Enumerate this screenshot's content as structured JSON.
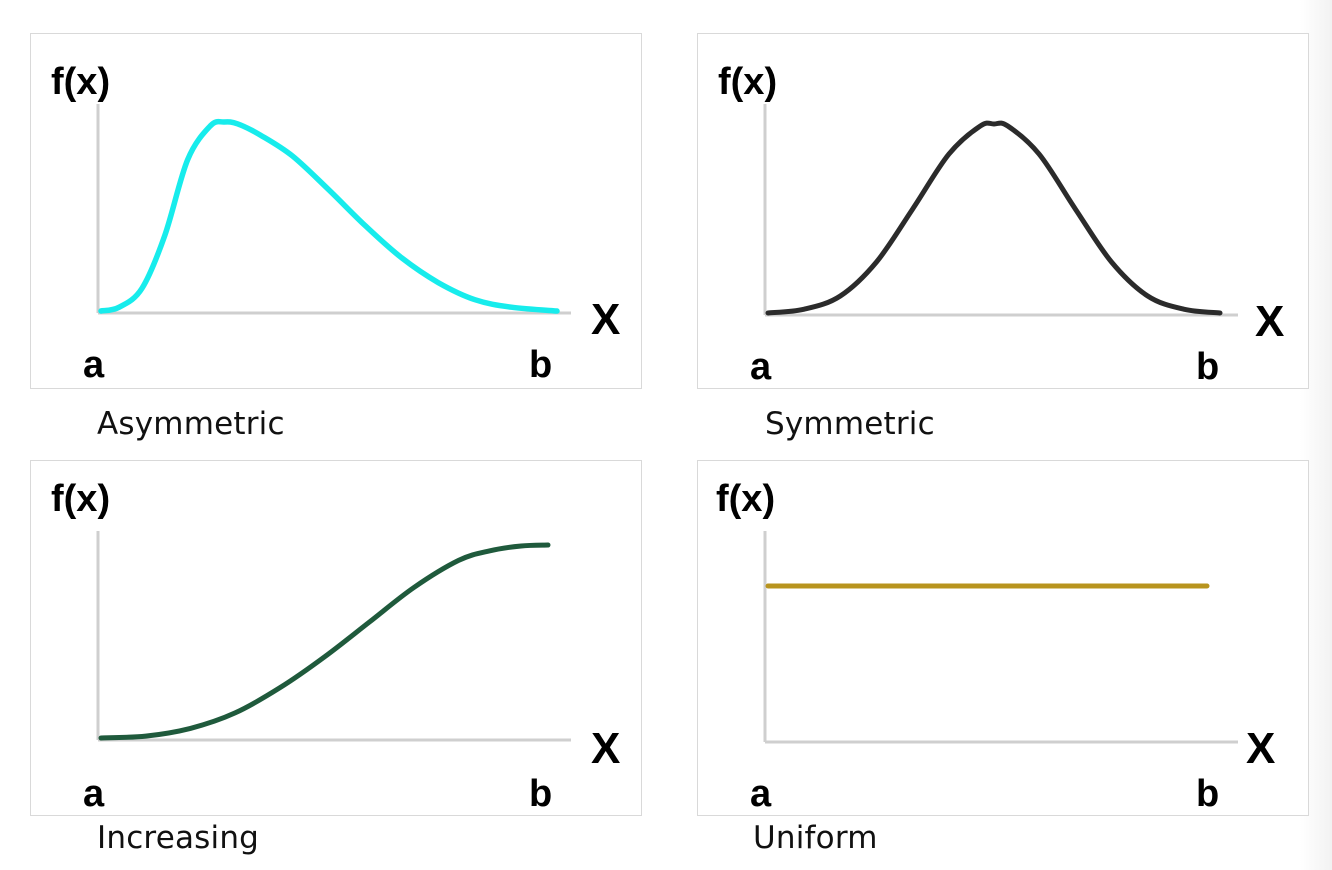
{
  "chart_data": [
    {
      "type": "line",
      "caption": "Asymmetric",
      "ylabel": "f(x)",
      "xlabel": "X",
      "x_left_label": "a",
      "x_right_label": "b",
      "color": "#17ecec",
      "x": [
        0,
        0.04,
        0.09,
        0.14,
        0.19,
        0.24,
        0.27,
        0.3,
        0.35,
        0.42,
        0.5,
        0.58,
        0.66,
        0.74,
        0.82,
        0.9,
        1.0
      ],
      "y": [
        0,
        0.02,
        0.12,
        0.4,
        0.8,
        0.98,
        1.0,
        0.99,
        0.93,
        0.82,
        0.64,
        0.45,
        0.28,
        0.15,
        0.06,
        0.02,
        0
      ]
    },
    {
      "type": "line",
      "caption": "Symmetric",
      "ylabel": "f(x)",
      "xlabel": "X",
      "x_left_label": "a",
      "x_right_label": "b",
      "color": "#2b2b2b",
      "x": [
        0,
        0.08,
        0.16,
        0.24,
        0.32,
        0.4,
        0.47,
        0.5,
        0.53,
        0.6,
        0.68,
        0.76,
        0.84,
        0.92,
        1.0
      ],
      "y": [
        0,
        0.02,
        0.09,
        0.27,
        0.55,
        0.84,
        0.99,
        1.0,
        0.99,
        0.84,
        0.55,
        0.27,
        0.09,
        0.02,
        0
      ]
    },
    {
      "type": "line",
      "caption": "Increasing",
      "ylabel": "f(x)",
      "xlabel": "X",
      "x_left_label": "a",
      "x_right_label": "b",
      "color": "#1f5a3c",
      "x": [
        0,
        0.1,
        0.2,
        0.3,
        0.4,
        0.5,
        0.6,
        0.7,
        0.8,
        0.87,
        0.94,
        1.0
      ],
      "y": [
        0,
        0.01,
        0.05,
        0.13,
        0.26,
        0.42,
        0.6,
        0.78,
        0.92,
        0.97,
        0.995,
        1.0
      ]
    },
    {
      "type": "line",
      "caption": "Uniform",
      "ylabel": "f(x)",
      "xlabel": "X",
      "x_left_label": "a",
      "x_right_label": "b",
      "color": "#b8941e",
      "x": [
        0,
        1.0
      ],
      "y": [
        1,
        1
      ]
    }
  ]
}
